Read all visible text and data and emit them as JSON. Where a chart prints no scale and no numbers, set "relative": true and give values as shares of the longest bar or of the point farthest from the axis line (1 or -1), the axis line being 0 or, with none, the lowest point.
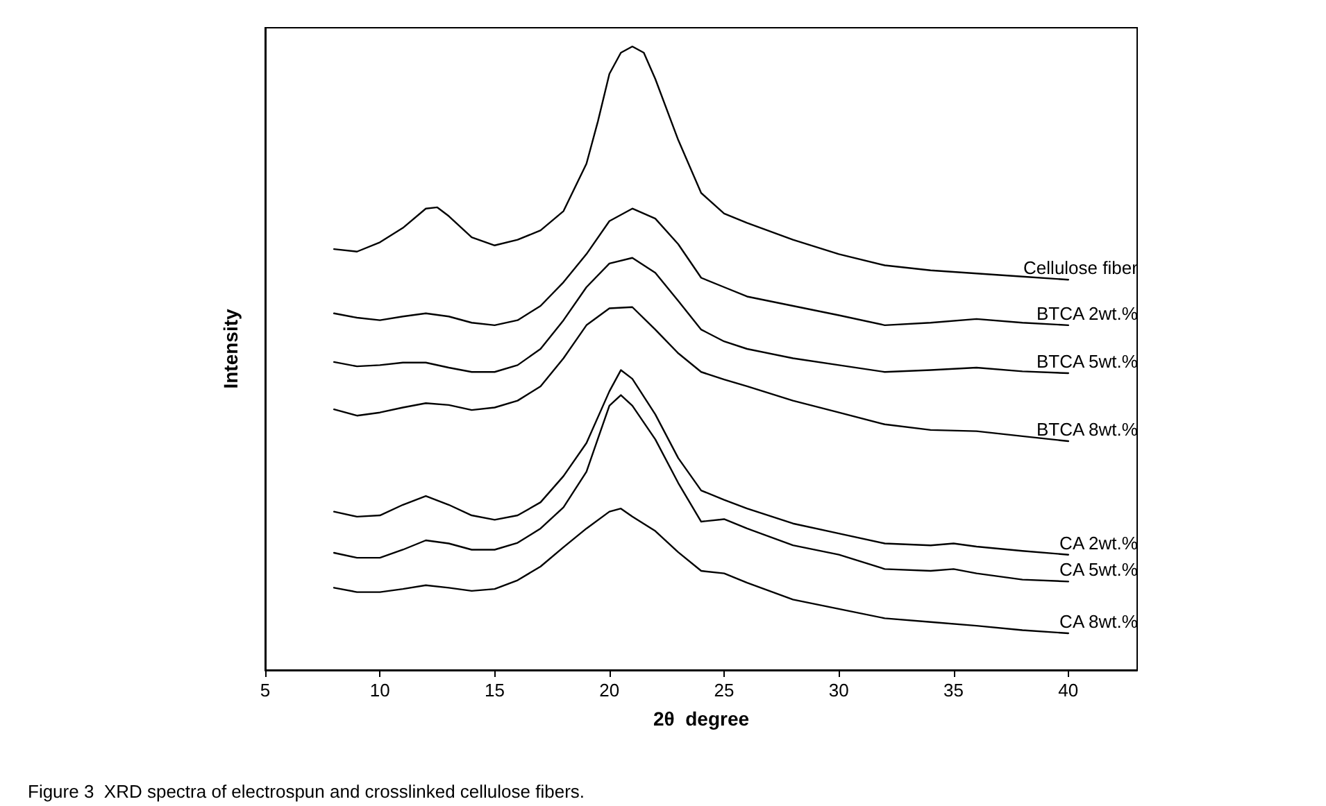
{
  "chart_data": {
    "type": "line",
    "xlabel": "2θ  degree",
    "ylabel": "Intensity",
    "relative": true,
    "xlim": [
      5,
      43
    ],
    "xticks": [
      5,
      10,
      15,
      20,
      25,
      30,
      35,
      40
    ],
    "grid": false,
    "legend": false,
    "marker": "none",
    "line_style": "solid",
    "annotations": [
      "Figure 3  XRD spectra of electrospun and crosslinked cellulose fibers."
    ],
    "series": [
      {
        "name": "Cellulose fiber",
        "color": "#000000",
        "x": [
          8,
          9,
          10,
          11,
          12,
          12.5,
          13,
          14,
          15,
          16,
          17,
          18,
          19,
          19.5,
          20,
          20.5,
          21,
          21.5,
          22,
          23,
          24,
          25,
          26,
          28,
          30,
          32,
          34,
          36,
          38,
          40
        ],
        "values": [
          0.675,
          0.671,
          0.686,
          0.709,
          0.74,
          0.742,
          0.728,
          0.694,
          0.681,
          0.69,
          0.705,
          0.736,
          0.812,
          0.88,
          0.956,
          0.99,
          1.0,
          0.99,
          0.948,
          0.85,
          0.765,
          0.732,
          0.717,
          0.69,
          0.667,
          0.649,
          0.641,
          0.636,
          0.631,
          0.626
        ]
      },
      {
        "name": "BTCA 2wt.%",
        "color": "#000000",
        "x": [
          8,
          9,
          10,
          11,
          12,
          13,
          14,
          15,
          16,
          17,
          18,
          19,
          20,
          21,
          22,
          23,
          24,
          25,
          26,
          28,
          30,
          32,
          34,
          36,
          38,
          40
        ],
        "values": [
          0.572,
          0.565,
          0.561,
          0.567,
          0.572,
          0.567,
          0.557,
          0.553,
          0.561,
          0.584,
          0.622,
          0.667,
          0.72,
          0.74,
          0.724,
          0.683,
          0.629,
          0.614,
          0.599,
          0.584,
          0.569,
          0.553,
          0.557,
          0.563,
          0.557,
          0.553
        ]
      },
      {
        "name": "BTCA 5wt.%",
        "color": "#000000",
        "x": [
          8,
          9,
          10,
          11,
          12,
          13,
          14,
          15,
          16,
          17,
          18,
          19,
          20,
          21,
          22,
          23,
          24,
          25,
          26,
          28,
          30,
          32,
          34,
          36,
          38,
          40
        ],
        "values": [
          0.494,
          0.487,
          0.489,
          0.493,
          0.493,
          0.485,
          0.478,
          0.478,
          0.489,
          0.515,
          0.561,
          0.614,
          0.652,
          0.661,
          0.637,
          0.592,
          0.546,
          0.527,
          0.515,
          0.5,
          0.489,
          0.478,
          0.481,
          0.485,
          0.479,
          0.476
        ]
      },
      {
        "name": "BTCA 8wt.%",
        "color": "#000000",
        "x": [
          8,
          9,
          10,
          11,
          12,
          13,
          14,
          15,
          16,
          17,
          18,
          19,
          20,
          21,
          22,
          23,
          24,
          25,
          26,
          28,
          30,
          32,
          34,
          36,
          38,
          40
        ],
        "values": [
          0.418,
          0.408,
          0.413,
          0.421,
          0.428,
          0.425,
          0.417,
          0.421,
          0.432,
          0.455,
          0.5,
          0.553,
          0.58,
          0.582,
          0.546,
          0.508,
          0.478,
          0.466,
          0.455,
          0.432,
          0.413,
          0.394,
          0.385,
          0.383,
          0.375,
          0.367
        ]
      },
      {
        "name": "CA 2wt.%",
        "color": "#000000",
        "x": [
          8,
          9,
          10,
          11,
          12,
          13,
          14,
          15,
          16,
          17,
          18,
          19,
          20,
          20.5,
          21,
          22,
          23,
          24,
          25,
          26,
          28,
          30,
          32,
          34,
          35,
          36,
          38,
          40
        ],
        "values": [
          0.254,
          0.246,
          0.248,
          0.265,
          0.279,
          0.265,
          0.248,
          0.241,
          0.248,
          0.269,
          0.311,
          0.364,
          0.447,
          0.481,
          0.467,
          0.41,
          0.34,
          0.288,
          0.273,
          0.259,
          0.235,
          0.219,
          0.203,
          0.2,
          0.203,
          0.198,
          0.191,
          0.185
        ]
      },
      {
        "name": "CA 5wt.%",
        "color": "#000000",
        "x": [
          8,
          9,
          10,
          11,
          12,
          13,
          14,
          15,
          16,
          17,
          18,
          19,
          19.5,
          20,
          20.5,
          21,
          22,
          23,
          24,
          25,
          26,
          28,
          30,
          32,
          34,
          35,
          36,
          38,
          40
        ],
        "values": [
          0.188,
          0.18,
          0.18,
          0.193,
          0.208,
          0.203,
          0.193,
          0.193,
          0.204,
          0.227,
          0.261,
          0.318,
          0.371,
          0.424,
          0.441,
          0.424,
          0.37,
          0.3,
          0.238,
          0.242,
          0.227,
          0.2,
          0.185,
          0.162,
          0.159,
          0.162,
          0.155,
          0.145,
          0.142
        ]
      },
      {
        "name": "CA 8wt.%",
        "color": "#000000",
        "x": [
          8,
          9,
          10,
          11,
          12,
          13,
          14,
          15,
          16,
          17,
          18,
          19,
          20,
          20.5,
          21,
          22,
          23,
          24,
          25,
          26,
          28,
          30,
          32,
          34,
          36,
          38,
          40
        ],
        "values": [
          0.132,
          0.125,
          0.125,
          0.13,
          0.136,
          0.132,
          0.127,
          0.13,
          0.144,
          0.166,
          0.197,
          0.227,
          0.254,
          0.259,
          0.246,
          0.223,
          0.189,
          0.159,
          0.155,
          0.14,
          0.113,
          0.098,
          0.083,
          0.077,
          0.071,
          0.064,
          0.059
        ]
      }
    ]
  }
}
